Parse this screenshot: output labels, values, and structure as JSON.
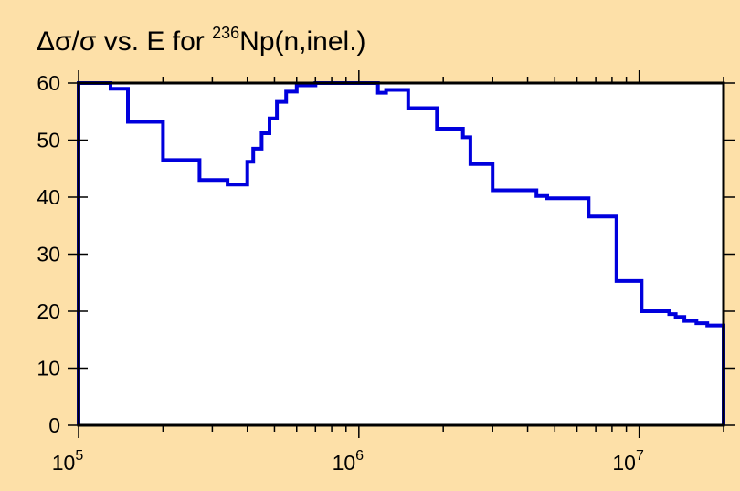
{
  "chart_data": {
    "type": "line",
    "title_parts": {
      "prefix": "Δσ/σ vs. E for ",
      "superscript": "236",
      "suffix": "Np(n,inel.)"
    },
    "xlabel": "",
    "ylabel": "",
    "x_scale": "log",
    "xlim": [
      100000,
      20000000
    ],
    "ylim": [
      0,
      60
    ],
    "y_ticks": [
      0,
      10,
      20,
      30,
      40,
      50,
      60
    ],
    "x_major_ticks": [
      {
        "value": 100000,
        "base": "10",
        "exponent": "5"
      },
      {
        "value": 1000000,
        "base": "10",
        "exponent": "6"
      },
      {
        "value": 10000000,
        "base": "10",
        "exponent": "7"
      }
    ],
    "grid": false,
    "colors": {
      "background": "#fde0a8",
      "plot_area": "#ffffff",
      "line": "#0000dd"
    },
    "series": [
      {
        "style": "step",
        "x": [
          100000,
          130000,
          150000,
          200000,
          270000,
          340000,
          400000,
          420000,
          450000,
          480000,
          510000,
          550000,
          600000,
          700000,
          1170000,
          1250000,
          1500000,
          1900000,
          2350000,
          2500000,
          3000000,
          4300000,
          4700000,
          6600000,
          8300000,
          10200000,
          12800000,
          13500000,
          14500000,
          16000000,
          17500000,
          20000000
        ],
        "y": [
          60,
          59,
          53.2,
          46.5,
          43,
          42.2,
          46.2,
          48.5,
          51.2,
          53.8,
          56.7,
          58.5,
          59.6,
          60,
          58.3,
          58.8,
          55.6,
          52,
          50.5,
          45.8,
          41.2,
          40.2,
          39.8,
          36.6,
          25.3,
          20,
          19.5,
          19,
          18.3,
          17.9,
          17.5,
          0
        ]
      }
    ]
  }
}
